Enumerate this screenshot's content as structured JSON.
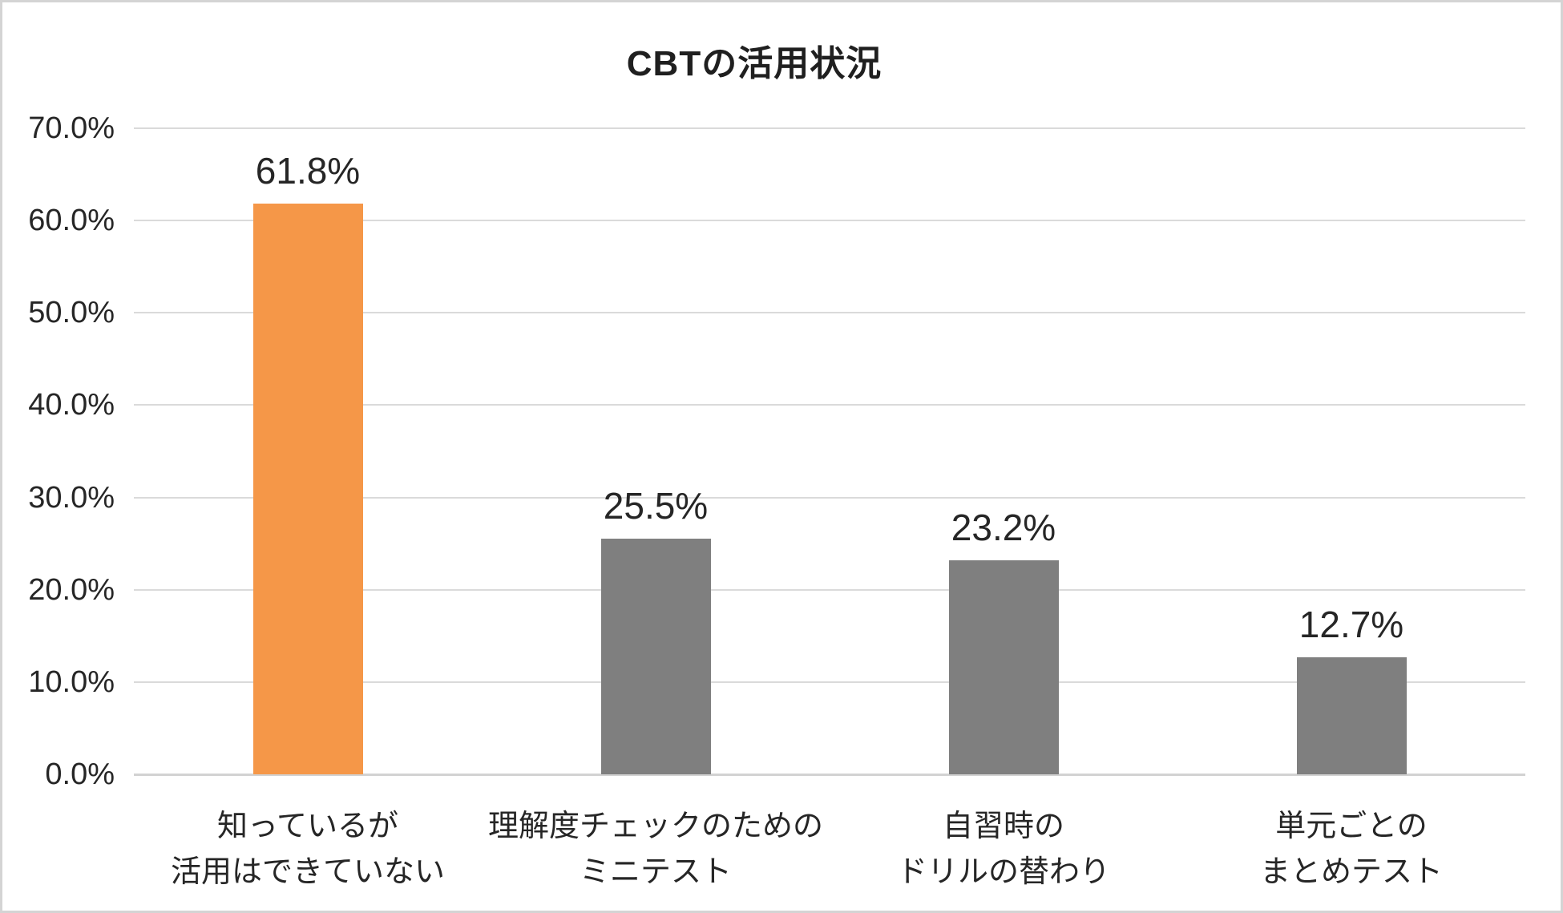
{
  "page": {
    "title": "CBTの活用状況"
  },
  "chart_data": {
    "type": "bar",
    "title": "CBTの活用状況",
    "categories": [
      [
        "知っているが",
        "活用はできていない"
      ],
      [
        "理解度チェックのための",
        "ミニテスト"
      ],
      [
        "自習時の",
        "ドリルの替わり"
      ],
      [
        "単元ごとの",
        "まとめテスト"
      ]
    ],
    "values": [
      61.8,
      25.5,
      23.2,
      12.7
    ],
    "data_labels": [
      "61.8%",
      "25.5%",
      "23.2%",
      "12.7%"
    ],
    "series_colors": [
      "#F59748",
      "#7F7F7F",
      "#7F7F7F",
      "#7F7F7F"
    ],
    "y_ticks": [
      {
        "value": 0,
        "label": "0.0%"
      },
      {
        "value": 10,
        "label": "10.0%"
      },
      {
        "value": 20,
        "label": "20.0%"
      },
      {
        "value": 30,
        "label": "30.0%"
      },
      {
        "value": 40,
        "label": "40.0%"
      },
      {
        "value": 50,
        "label": "50.0%"
      },
      {
        "value": 60,
        "label": "60.0%"
      },
      {
        "value": 70,
        "label": "70.0%"
      }
    ],
    "ylim": [
      0,
      70
    ],
    "xlabel": "",
    "ylabel": "",
    "grid": true,
    "legend_position": "none",
    "colors": {
      "highlight_bar": "#F59748",
      "default_bar": "#7F7F7F",
      "gridline": "#DADADA",
      "text": "#262626",
      "frame_border": "#D4D4D4",
      "background": "#FFFFFF"
    }
  }
}
